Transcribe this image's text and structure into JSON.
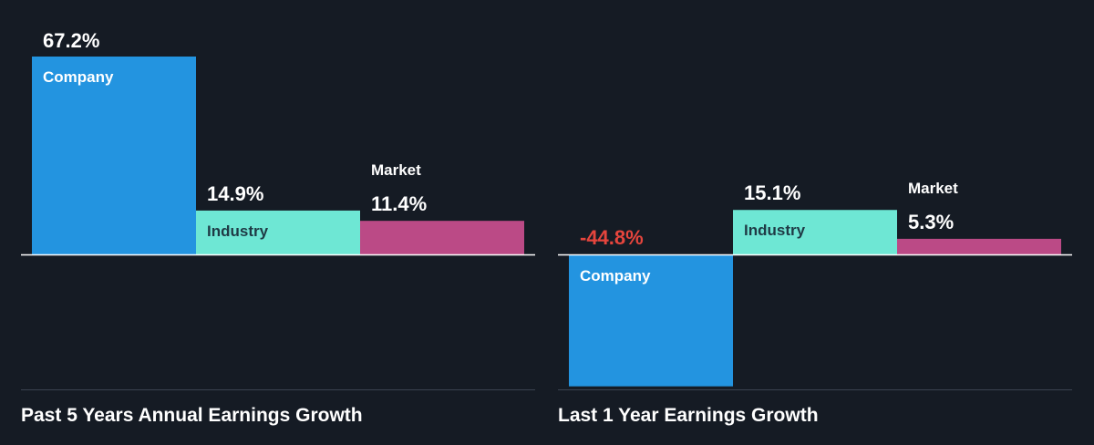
{
  "colors": {
    "background": "#151b24",
    "company": "#2394e0",
    "industry": "#6ee7d4",
    "market": "#bb4a86",
    "value_text": "#ffffff",
    "negative_value_text": "#e5453d",
    "baseline": "#ffffff",
    "footer_line": "#3a4350"
  },
  "chart_data": [
    {
      "type": "bar",
      "title": "Past 5 Years Annual Earnings Growth",
      "categories": [
        "Company",
        "Industry",
        "Market"
      ],
      "values": [
        67.2,
        14.9,
        11.4
      ],
      "value_labels": [
        "67.2%",
        "14.9%",
        "11.4%"
      ],
      "unit": "%",
      "xlabel": "",
      "ylabel": "",
      "grid": false,
      "legend": "none"
    },
    {
      "type": "bar",
      "title": "Last 1 Year Earnings Growth",
      "categories": [
        "Company",
        "Industry",
        "Market"
      ],
      "values": [
        -44.8,
        15.1,
        5.3
      ],
      "value_labels": [
        "-44.8%",
        "15.1%",
        "5.3%"
      ],
      "unit": "%",
      "xlabel": "",
      "ylabel": "",
      "grid": false,
      "legend": "none"
    }
  ]
}
